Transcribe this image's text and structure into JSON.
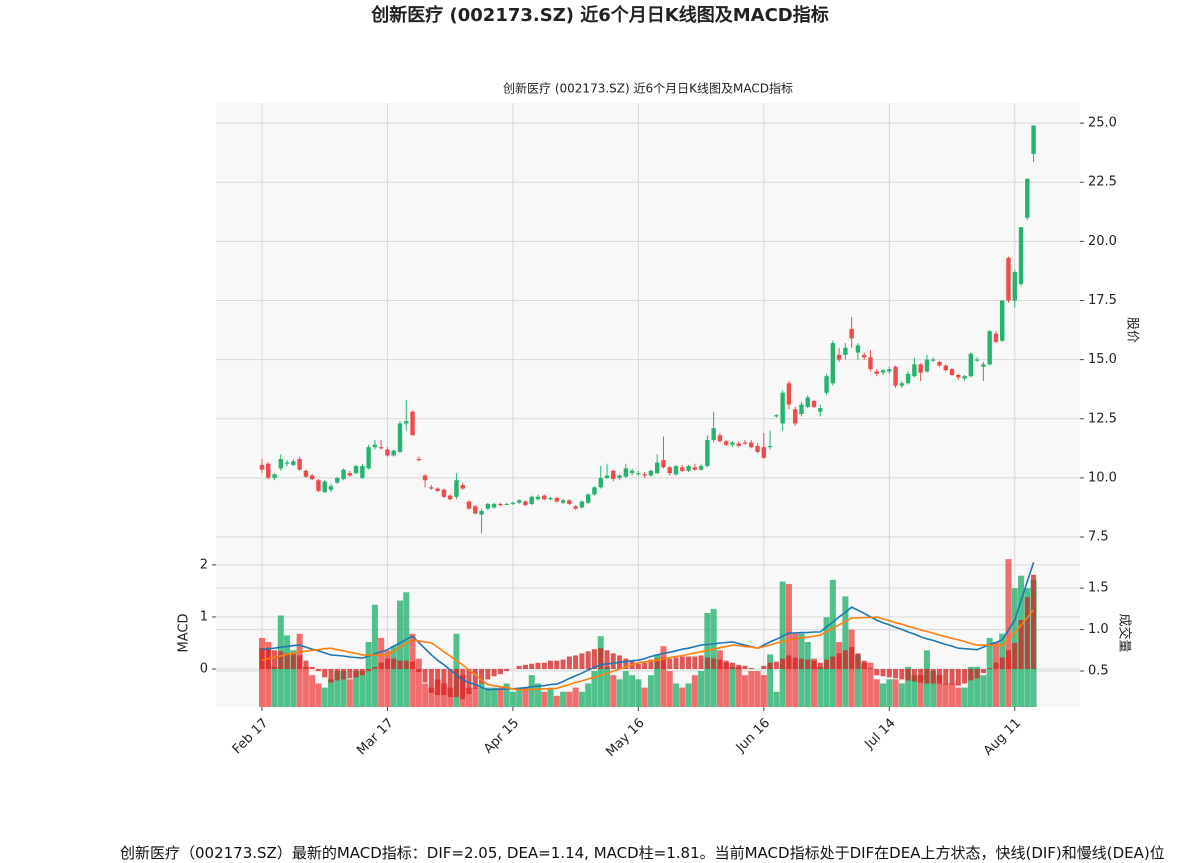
{
  "chart_data": {
    "type": "candlestick",
    "title": "创新医疗 (002173.SZ) 近6个月日K线图及MACD指标",
    "subtitle": "创新医疗 (002173.SZ) 近6个月日K线图及MACD指标",
    "ylabel": "股价",
    "up_color": "#26b36f",
    "down_color": "#ef4b4b",
    "xlim": [
      -7.33,
      130.4
    ],
    "xticks": [
      {
        "value": 0,
        "label": "Feb 17"
      },
      {
        "value": 20,
        "label": "Mar 17"
      },
      {
        "value": 40,
        "label": "Apr 15"
      },
      {
        "value": 60,
        "label": "May 16"
      },
      {
        "value": 80,
        "label": "Jun 16"
      },
      {
        "value": 100,
        "label": "Jul 14"
      },
      {
        "value": 120,
        "label": "Aug 11"
      }
    ],
    "ylim": [
      6.74,
      25.85
    ],
    "yticks": [
      {
        "value": 7.5,
        "label": "7.5"
      },
      {
        "value": 10,
        "label": "10.0"
      },
      {
        "value": 12.5,
        "label": "12.5"
      },
      {
        "value": 15,
        "label": "15.0"
      },
      {
        "value": 17.5,
        "label": "17.5"
      },
      {
        "value": 20,
        "label": "20.0"
      },
      {
        "value": 22.5,
        "label": "22.5"
      },
      {
        "value": 25,
        "label": "25.0"
      }
    ],
    "grid": true,
    "open": [
      10.55,
      10.6,
      10.0,
      10.4,
      10.6,
      10.55,
      10.8,
      10.3,
      10.1,
      9.9,
      9.4,
      9.5,
      9.8,
      9.95,
      10.2,
      10.2,
      10.0,
      10.4,
      11.3,
      11.3,
      11.2,
      10.95,
      11.1,
      12.3,
      12.8,
      10.8,
      10.1,
      9.6,
      9.55,
      9.5,
      9.25,
      9.2,
      9.7,
      9.0,
      8.8,
      8.45,
      8.7,
      8.75,
      8.9,
      8.9,
      8.9,
      8.95,
      9.0,
      8.9,
      9.1,
      9.25,
      9.1,
      9.15,
      8.95,
      9.05,
      8.8,
      8.75,
      8.95,
      9.3,
      9.6,
      10.0,
      10.3,
      10.0,
      10.05,
      10.2,
      10.2,
      10.15,
      10.1,
      10.2,
      10.75,
      10.45,
      10.15,
      10.45,
      10.3,
      10.45,
      10.35,
      10.5,
      11.6,
      11.8,
      11.55,
      11.4,
      11.45,
      11.5,
      11.5,
      11.35,
      11.3,
      11.3,
      12.6,
      12.3,
      14.0,
      12.9,
      12.7,
      13.0,
      13.25,
      12.8,
      13.6,
      14.0,
      15.2,
      15.2,
      16.3,
      15.3,
      15.2,
      15.1,
      14.5,
      14.45,
      14.5,
      14.7,
      13.9,
      14.0,
      14.3,
      14.8,
      14.5,
      15.0,
      14.9,
      14.75,
      14.6,
      14.35,
      14.2,
      14.3,
      15.0,
      14.7,
      14.8,
      16.1,
      15.8,
      19.3,
      17.5,
      18.2,
      21.0,
      23.7
    ],
    "high": [
      10.8,
      10.65,
      10.2,
      11.0,
      10.75,
      10.8,
      10.9,
      10.35,
      10.15,
      9.95,
      9.9,
      9.75,
      10.05,
      10.4,
      10.3,
      10.55,
      10.6,
      11.4,
      11.6,
      11.6,
      11.3,
      11.2,
      12.4,
      13.3,
      12.85,
      10.9,
      10.15,
      9.7,
      9.6,
      9.55,
      9.3,
      10.2,
      9.8,
      9.05,
      8.85,
      8.7,
      8.95,
      8.95,
      8.95,
      8.95,
      9.0,
      9.1,
      9.05,
      9.25,
      9.3,
      9.3,
      9.2,
      9.2,
      9.1,
      9.1,
      8.85,
      9.05,
      9.35,
      9.65,
      10.5,
      10.6,
      10.35,
      10.15,
      10.6,
      10.4,
      10.3,
      10.25,
      10.35,
      11.0,
      11.75,
      10.5,
      10.55,
      10.55,
      10.55,
      10.6,
      10.6,
      11.8,
      12.8,
      11.9,
      11.6,
      11.55,
      11.55,
      11.6,
      11.6,
      11.45,
      11.9,
      12.0,
      12.7,
      13.7,
      14.1,
      13.0,
      13.2,
      13.5,
      13.3,
      13.1,
      14.4,
      15.8,
      15.5,
      15.7,
      16.8,
      15.7,
      15.3,
      15.4,
      14.6,
      14.6,
      14.7,
      14.75,
      14.1,
      14.5,
      15.1,
      14.85,
      15.2,
      15.1,
      14.95,
      14.8,
      14.65,
      14.4,
      14.35,
      15.3,
      15.1,
      14.9,
      16.25,
      16.2,
      17.5,
      19.35,
      18.8,
      20.6,
      22.65,
      24.9
    ],
    "low": [
      10.2,
      9.95,
      9.9,
      10.3,
      10.5,
      10.5,
      10.3,
      10.0,
      9.9,
      9.4,
      9.35,
      9.4,
      9.75,
      9.9,
      10.05,
      10.15,
      9.95,
      10.35,
      11.2,
      11.2,
      10.9,
      10.9,
      11.05,
      12.0,
      11.8,
      10.7,
      9.6,
      9.5,
      9.4,
      9.15,
      9.05,
      9.1,
      9.5,
      8.65,
      8.45,
      7.65,
      8.65,
      8.7,
      8.8,
      8.85,
      8.85,
      8.9,
      8.8,
      8.85,
      9.05,
      9.05,
      9.05,
      8.95,
      8.9,
      8.85,
      8.65,
      8.7,
      8.9,
      9.25,
      9.55,
      9.95,
      9.85,
      9.9,
      10.0,
      10.1,
      10.1,
      10.0,
      10.05,
      10.15,
      10.4,
      10.1,
      10.1,
      10.25,
      10.25,
      10.3,
      10.3,
      10.45,
      11.5,
      11.5,
      11.35,
      11.3,
      11.3,
      11.4,
      11.25,
      11.05,
      10.8,
      11.2,
      12.55,
      12.0,
      12.9,
      12.2,
      12.6,
      12.95,
      12.95,
      12.6,
      13.5,
      13.9,
      14.9,
      15.0,
      15.5,
      15.0,
      15.0,
      14.5,
      14.3,
      14.35,
      14.4,
      13.8,
      13.8,
      13.95,
      14.25,
      14.1,
      14.45,
      14.9,
      14.7,
      14.5,
      14.3,
      14.15,
      14.1,
      14.25,
      14.9,
      14.1,
      14.75,
      15.7,
      15.75,
      17.4,
      17.2,
      18.1,
      20.9,
      23.35
    ],
    "close": [
      10.35,
      10.0,
      10.15,
      10.8,
      10.65,
      10.7,
      10.35,
      10.05,
      9.95,
      9.45,
      9.85,
      9.65,
      10.0,
      10.35,
      10.1,
      10.5,
      10.5,
      11.3,
      11.4,
      11.25,
      10.95,
      11.15,
      12.3,
      12.4,
      11.8,
      10.75,
      9.9,
      9.55,
      9.45,
      9.2,
      9.1,
      9.9,
      9.55,
      8.7,
      8.5,
      8.6,
      8.9,
      8.9,
      8.85,
      8.9,
      8.95,
      9.05,
      8.85,
      9.2,
      9.2,
      9.1,
      9.15,
      9.0,
      9.05,
      8.9,
      8.7,
      9.0,
      9.3,
      9.6,
      10.0,
      10.1,
      9.95,
      10.1,
      10.4,
      10.3,
      10.2,
      10.1,
      10.3,
      10.65,
      10.45,
      10.2,
      10.5,
      10.3,
      10.5,
      10.35,
      10.5,
      11.6,
      12.1,
      11.55,
      11.4,
      11.5,
      11.35,
      11.45,
      11.3,
      11.1,
      10.85,
      11.35,
      12.65,
      13.6,
      13.1,
      12.3,
      13.1,
      13.4,
      13.0,
      12.95,
      14.3,
      15.7,
      15.0,
      15.5,
      15.9,
      15.6,
      15.1,
      14.6,
      14.4,
      14.55,
      14.6,
      13.9,
      14.0,
      14.4,
      14.8,
      14.45,
      15.0,
      15.0,
      14.75,
      14.55,
      14.35,
      14.25,
      14.3,
      15.25,
      15.0,
      14.8,
      16.2,
      15.75,
      17.5,
      17.5,
      18.7,
      20.6,
      22.65,
      24.9
    ],
    "volume": {
      "label": "成交量",
      "ylim": [
        0.066,
        1.9
      ],
      "yticks": [
        0.5,
        {
          "value": 1.0,
          "label": "1.0"
        },
        1.5
      ],
      "values": [
        0.9,
        0.85,
        0.55,
        1.17,
        0.93,
        0.75,
        0.95,
        0.55,
        0.45,
        0.35,
        0.3,
        0.4,
        0.5,
        0.5,
        0.4,
        0.5,
        0.5,
        0.85,
        1.3,
        0.9,
        0.75,
        0.8,
        1.35,
        1.45,
        0.95,
        0.65,
        0.35,
        0.3,
        0.4,
        0.35,
        0.3,
        0.95,
        0.45,
        0.3,
        0.3,
        0.35,
        0.3,
        0.3,
        0.3,
        0.35,
        0.25,
        0.3,
        0.3,
        0.45,
        0.35,
        0.25,
        0.3,
        0.2,
        0.25,
        0.25,
        0.3,
        0.25,
        0.35,
        0.5,
        0.92,
        0.55,
        0.45,
        0.4,
        0.5,
        0.45,
        0.4,
        0.3,
        0.45,
        0.7,
        0.8,
        0.5,
        0.35,
        0.3,
        0.35,
        0.45,
        0.5,
        1.2,
        1.25,
        0.75,
        0.6,
        0.55,
        0.55,
        0.45,
        0.5,
        0.5,
        0.45,
        0.7,
        0.25,
        1.58,
        1.55,
        0.95,
        0.95,
        0.85,
        0.65,
        0.55,
        1.15,
        1.6,
        0.85,
        1.4,
        1.0,
        0.7,
        0.6,
        0.6,
        0.4,
        0.35,
        0.4,
        0.4,
        0.35,
        0.55,
        0.45,
        0.45,
        0.75,
        0.5,
        0.45,
        0.35,
        0.35,
        0.3,
        0.3,
        0.55,
        0.55,
        0.45,
        0.9,
        0.85,
        0.95,
        1.85,
        1.5,
        1.65,
        1.5,
        1.6
      ]
    },
    "macd": {
      "label": "MACD",
      "ylim": [
        -0.73,
        2.19
      ],
      "yticks": [
        0,
        1,
        2
      ],
      "dif_color": "#1f77b4",
      "dea_color": "#ff7f0e",
      "hist_color": "#d62020",
      "dif": [
        0.37,
        0.39,
        0.4,
        0.42,
        0.43,
        0.45,
        0.46,
        0.42,
        0.38,
        0.35,
        0.31,
        0.27,
        0.26,
        0.25,
        0.23,
        0.22,
        0.21,
        0.25,
        0.29,
        0.33,
        0.37,
        0.44,
        0.5,
        0.57,
        0.63,
        0.51,
        0.39,
        0.27,
        0.17,
        0.08,
        -0.02,
        -0.11,
        -0.21,
        -0.26,
        -0.3,
        -0.35,
        -0.4,
        -0.39,
        -0.39,
        -0.38,
        -0.38,
        -0.37,
        -0.36,
        -0.34,
        -0.33,
        -0.32,
        -0.3,
        -0.29,
        -0.24,
        -0.18,
        -0.13,
        -0.08,
        -0.02,
        0.03,
        0.08,
        0.1,
        0.11,
        0.13,
        0.14,
        0.16,
        0.17,
        0.2,
        0.24,
        0.27,
        0.3,
        0.32,
        0.35,
        0.38,
        0.4,
        0.43,
        0.46,
        0.47,
        0.48,
        0.5,
        0.51,
        0.52,
        0.49,
        0.46,
        0.43,
        0.4,
        0.46,
        0.52,
        0.57,
        0.63,
        0.69,
        0.69,
        0.7,
        0.7,
        0.71,
        0.71,
        0.81,
        0.9,
        1.0,
        1.09,
        1.19,
        1.13,
        1.07,
        1.0,
        0.94,
        0.89,
        0.85,
        0.8,
        0.76,
        0.71,
        0.67,
        0.62,
        0.58,
        0.55,
        0.51,
        0.47,
        0.44,
        0.4,
        0.39,
        0.38,
        0.37,
        0.42,
        0.47,
        0.51,
        0.56,
        0.75,
        0.94,
        1.31,
        1.68,
        2.05
      ],
      "dea": [
        0.17,
        0.2,
        0.22,
        0.25,
        0.28,
        0.3,
        0.33,
        0.34,
        0.36,
        0.37,
        0.39,
        0.4,
        0.37,
        0.35,
        0.32,
        0.3,
        0.27,
        0.27,
        0.27,
        0.27,
        0.27,
        0.34,
        0.42,
        0.49,
        0.56,
        0.54,
        0.52,
        0.5,
        0.42,
        0.33,
        0.25,
        0.16,
        0.08,
        -0.02,
        -0.11,
        -0.21,
        -0.3,
        -0.32,
        -0.34,
        -0.36,
        -0.38,
        -0.4,
        -0.4,
        -0.39,
        -0.39,
        -0.38,
        -0.38,
        -0.37,
        -0.33,
        -0.3,
        -0.26,
        -0.23,
        -0.19,
        -0.16,
        -0.12,
        -0.08,
        -0.04,
        0.0,
        0.04,
        0.08,
        0.12,
        0.14,
        0.15,
        0.17,
        0.19,
        0.22,
        0.24,
        0.26,
        0.28,
        0.31,
        0.33,
        0.36,
        0.38,
        0.41,
        0.43,
        0.46,
        0.45,
        0.43,
        0.42,
        0.4,
        0.43,
        0.46,
        0.5,
        0.53,
        0.56,
        0.58,
        0.6,
        0.61,
        0.63,
        0.65,
        0.72,
        0.78,
        0.85,
        0.91,
        0.98,
        0.98,
        0.99,
        0.99,
        1.0,
        0.96,
        0.93,
        0.89,
        0.86,
        0.82,
        0.79,
        0.75,
        0.72,
        0.69,
        0.65,
        0.62,
        0.59,
        0.56,
        0.53,
        0.49,
        0.46,
        0.46,
        0.46,
        0.45,
        0.45,
        0.57,
        0.69,
        0.84,
        0.99,
        1.14
      ],
      "hist": [
        0.4,
        0.38,
        0.36,
        0.34,
        0.3,
        0.3,
        0.26,
        0.16,
        0.04,
        -0.04,
        -0.16,
        -0.26,
        -0.22,
        -0.2,
        -0.18,
        -0.16,
        -0.12,
        -0.04,
        0.04,
        0.12,
        0.2,
        0.2,
        0.16,
        0.16,
        0.14,
        -0.06,
        -0.26,
        -0.46,
        -0.5,
        -0.5,
        -0.54,
        -0.54,
        -0.58,
        -0.48,
        -0.38,
        -0.28,
        -0.2,
        -0.14,
        -0.1,
        -0.04,
        0.0,
        0.06,
        0.08,
        0.1,
        0.12,
        0.12,
        0.16,
        0.16,
        0.18,
        0.24,
        0.26,
        0.3,
        0.34,
        0.38,
        0.4,
        0.36,
        0.3,
        0.26,
        0.2,
        0.16,
        0.1,
        0.12,
        0.18,
        0.2,
        0.22,
        0.2,
        0.22,
        0.24,
        0.24,
        0.24,
        0.26,
        0.22,
        0.2,
        0.18,
        0.16,
        0.12,
        0.08,
        0.06,
        0.02,
        0.0,
        0.06,
        0.12,
        0.14,
        0.2,
        0.26,
        0.22,
        0.2,
        0.18,
        0.16,
        0.12,
        0.18,
        0.24,
        0.3,
        0.36,
        0.42,
        0.3,
        0.16,
        0.02,
        -0.12,
        -0.14,
        -0.16,
        -0.18,
        -0.2,
        -0.22,
        -0.24,
        -0.26,
        -0.28,
        -0.28,
        -0.28,
        -0.3,
        -0.3,
        -0.32,
        -0.28,
        -0.22,
        -0.18,
        -0.08,
        0.02,
        0.12,
        0.22,
        0.36,
        0.5,
        0.94,
        1.38,
        1.81
      ]
    }
  },
  "summary": "创新医疗（002173.SZ）最新的MACD指标：DIF=2.05, DEA=1.14, MACD柱=1.81。当前MACD指标处于DIF在DEA上方状态，快线(DIF)和慢线(DEA)位"
}
